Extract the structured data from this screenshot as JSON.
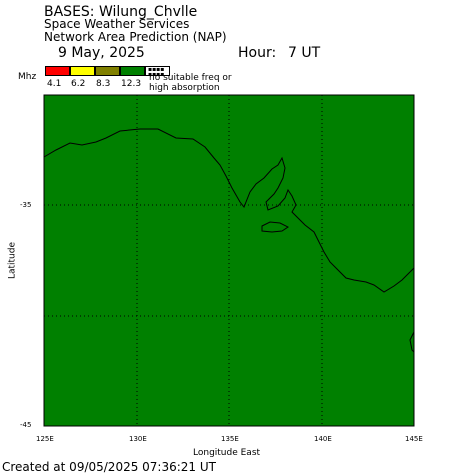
{
  "header": {
    "line1": "BASES: Wilung_Chvlle",
    "line2": "Space Weather Services",
    "line3": "Network Area Prediction (NAP)",
    "date": "9 May, 2025",
    "hour_label": "Hour:",
    "hour_value": "7 UT"
  },
  "legend": {
    "unit": "Mhz",
    "colors": [
      "#ff0000",
      "#ffff00",
      "#808000",
      "#008000"
    ],
    "values": [
      "4.1",
      "6.2",
      "8.3",
      "12.3"
    ],
    "no_suitable_line1": "no suitable freq or",
    "no_suitable_line2": "high absorption"
  },
  "map": {
    "fill_color": "#008000",
    "lat_ticks": [
      "-35",
      "-45"
    ],
    "lon_ticks": [
      "125E",
      "130E",
      "135E",
      "140E",
      "145E"
    ],
    "ylabel": "Latitude",
    "xlabel": "Longitude East"
  },
  "footer": {
    "created": "Created at 09/05/2025 07:36:21 UT"
  }
}
